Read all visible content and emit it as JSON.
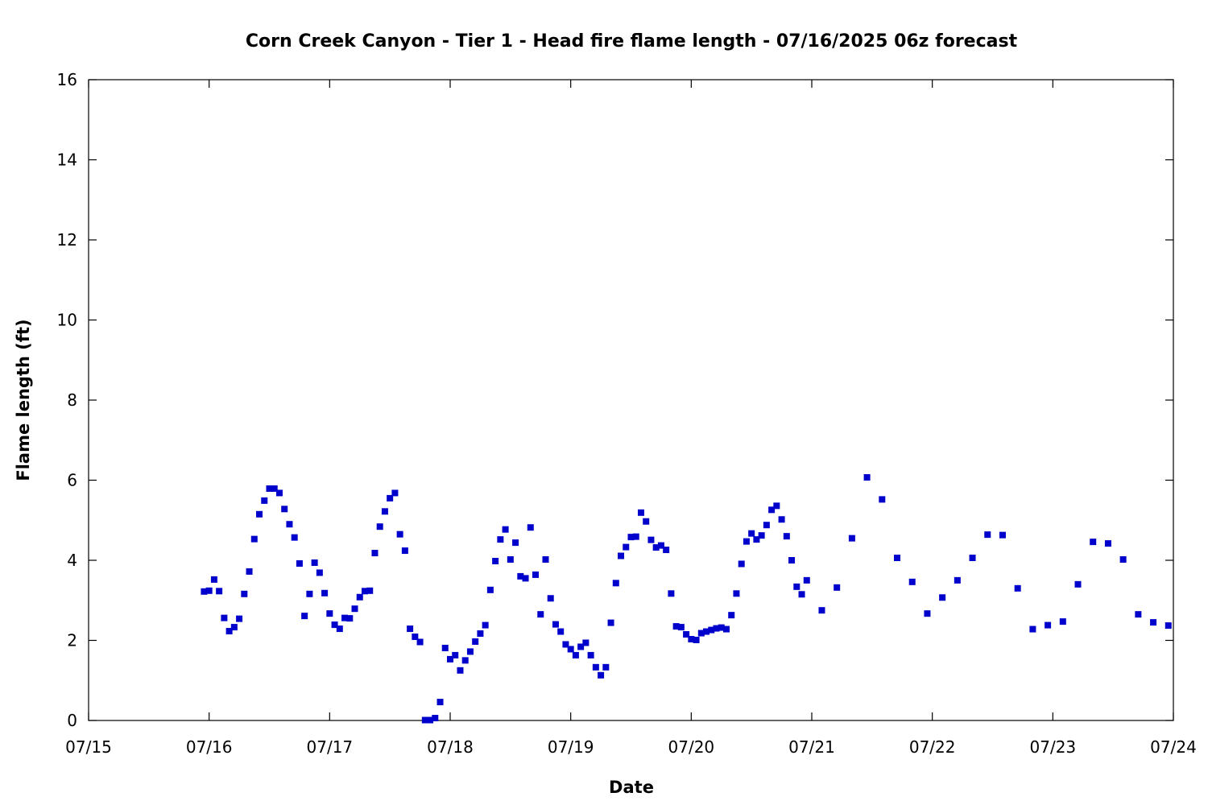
{
  "chart_data": {
    "type": "scatter",
    "title": "Corn Creek Canyon - Tier 1 - Head fire flame length - 07/16/2025 06z forecast",
    "xlabel": "Date",
    "ylabel": "Flame length (ft)",
    "x_tick_labels": [
      "07/15",
      "07/16",
      "07/17",
      "07/18",
      "07/19",
      "07/20",
      "07/21",
      "07/22",
      "07/23",
      "07/24"
    ],
    "y_ticks": [
      0,
      2,
      4,
      6,
      8,
      10,
      12,
      14,
      16
    ],
    "ylim": [
      0,
      16
    ],
    "xlim": [
      "2025-07-15 00:00",
      "2025-07-24 00:00"
    ],
    "grid": false,
    "marker_color": "#0000cc",
    "series": [
      {
        "points": [
          [
            "2025-07-15 23:00",
            3.22
          ],
          [
            "2025-07-16 00:00",
            3.24
          ],
          [
            "2025-07-16 01:00",
            3.52
          ],
          [
            "2025-07-16 02:00",
            3.23
          ],
          [
            "2025-07-16 03:00",
            2.56
          ],
          [
            "2025-07-16 04:00",
            2.23
          ],
          [
            "2025-07-16 05:00",
            2.33
          ],
          [
            "2025-07-16 06:00",
            2.54
          ],
          [
            "2025-07-16 07:00",
            3.16
          ],
          [
            "2025-07-16 08:00",
            3.72
          ],
          [
            "2025-07-16 09:00",
            4.53
          ],
          [
            "2025-07-16 10:00",
            5.15
          ],
          [
            "2025-07-16 11:00",
            5.49
          ],
          [
            "2025-07-16 12:00",
            5.79
          ],
          [
            "2025-07-16 13:00",
            5.79
          ],
          [
            "2025-07-16 14:00",
            5.68
          ],
          [
            "2025-07-16 15:00",
            5.28
          ],
          [
            "2025-07-16 16:00",
            4.9
          ],
          [
            "2025-07-16 17:00",
            4.57
          ],
          [
            "2025-07-16 18:00",
            3.92
          ],
          [
            "2025-07-16 19:00",
            2.61
          ],
          [
            "2025-07-16 20:00",
            3.16
          ],
          [
            "2025-07-16 21:00",
            3.94
          ],
          [
            "2025-07-16 22:00",
            3.69
          ],
          [
            "2025-07-16 23:00",
            3.18
          ],
          [
            "2025-07-17 00:00",
            2.67
          ],
          [
            "2025-07-17 01:00",
            2.39
          ],
          [
            "2025-07-17 02:00",
            2.29
          ],
          [
            "2025-07-17 03:00",
            2.56
          ],
          [
            "2025-07-17 04:00",
            2.55
          ],
          [
            "2025-07-17 05:00",
            2.79
          ],
          [
            "2025-07-17 06:00",
            3.08
          ],
          [
            "2025-07-17 07:00",
            3.23
          ],
          [
            "2025-07-17 08:00",
            3.24
          ],
          [
            "2025-07-17 09:00",
            4.18
          ],
          [
            "2025-07-17 10:00",
            4.84
          ],
          [
            "2025-07-17 11:00",
            5.22
          ],
          [
            "2025-07-17 12:00",
            5.55
          ],
          [
            "2025-07-17 13:00",
            5.68
          ],
          [
            "2025-07-17 14:00",
            4.65
          ],
          [
            "2025-07-17 15:00",
            4.24
          ],
          [
            "2025-07-17 16:00",
            2.29
          ],
          [
            "2025-07-17 17:00",
            2.09
          ],
          [
            "2025-07-17 18:00",
            1.96
          ],
          [
            "2025-07-17 19:00",
            0.01
          ],
          [
            "2025-07-17 20:00",
            0.01
          ],
          [
            "2025-07-17 21:00",
            0.06
          ],
          [
            "2025-07-17 22:00",
            0.46
          ],
          [
            "2025-07-17 23:00",
            1.81
          ],
          [
            "2025-07-18 00:00",
            1.53
          ],
          [
            "2025-07-18 01:00",
            1.63
          ],
          [
            "2025-07-18 02:00",
            1.25
          ],
          [
            "2025-07-18 03:00",
            1.5
          ],
          [
            "2025-07-18 04:00",
            1.72
          ],
          [
            "2025-07-18 05:00",
            1.97
          ],
          [
            "2025-07-18 06:00",
            2.17
          ],
          [
            "2025-07-18 07:00",
            2.38
          ],
          [
            "2025-07-18 08:00",
            3.26
          ],
          [
            "2025-07-18 09:00",
            3.98
          ],
          [
            "2025-07-18 10:00",
            4.52
          ],
          [
            "2025-07-18 11:00",
            4.77
          ],
          [
            "2025-07-18 12:00",
            4.02
          ],
          [
            "2025-07-18 13:00",
            4.44
          ],
          [
            "2025-07-18 14:00",
            3.6
          ],
          [
            "2025-07-18 15:00",
            3.55
          ],
          [
            "2025-07-18 16:00",
            4.82
          ],
          [
            "2025-07-18 17:00",
            3.64
          ],
          [
            "2025-07-18 18:00",
            2.65
          ],
          [
            "2025-07-18 19:00",
            4.02
          ],
          [
            "2025-07-18 20:00",
            3.05
          ],
          [
            "2025-07-18 21:00",
            2.4
          ],
          [
            "2025-07-18 22:00",
            2.22
          ],
          [
            "2025-07-18 23:00",
            1.9
          ],
          [
            "2025-07-19 00:00",
            1.78
          ],
          [
            "2025-07-19 01:00",
            1.63
          ],
          [
            "2025-07-19 02:00",
            1.84
          ],
          [
            "2025-07-19 03:00",
            1.94
          ],
          [
            "2025-07-19 04:00",
            1.63
          ],
          [
            "2025-07-19 05:00",
            1.33
          ],
          [
            "2025-07-19 06:00",
            1.13
          ],
          [
            "2025-07-19 07:00",
            1.33
          ],
          [
            "2025-07-19 08:00",
            2.44
          ],
          [
            "2025-07-19 09:00",
            3.43
          ],
          [
            "2025-07-19 10:00",
            4.11
          ],
          [
            "2025-07-19 11:00",
            4.33
          ],
          [
            "2025-07-19 12:00",
            4.58
          ],
          [
            "2025-07-19 13:00",
            4.59
          ],
          [
            "2025-07-19 14:00",
            5.19
          ],
          [
            "2025-07-19 15:00",
            4.97
          ],
          [
            "2025-07-19 16:00",
            4.51
          ],
          [
            "2025-07-19 17:00",
            4.32
          ],
          [
            "2025-07-19 18:00",
            4.37
          ],
          [
            "2025-07-19 19:00",
            4.26
          ],
          [
            "2025-07-19 20:00",
            3.17
          ],
          [
            "2025-07-19 21:00",
            2.35
          ],
          [
            "2025-07-19 22:00",
            2.33
          ],
          [
            "2025-07-19 23:00",
            2.15
          ],
          [
            "2025-07-20 00:00",
            2.03
          ],
          [
            "2025-07-20 01:00",
            2.01
          ],
          [
            "2025-07-20 02:00",
            2.18
          ],
          [
            "2025-07-20 03:00",
            2.22
          ],
          [
            "2025-07-20 04:00",
            2.26
          ],
          [
            "2025-07-20 05:00",
            2.3
          ],
          [
            "2025-07-20 06:00",
            2.32
          ],
          [
            "2025-07-20 07:00",
            2.28
          ],
          [
            "2025-07-20 08:00",
            2.63
          ],
          [
            "2025-07-20 09:00",
            3.17
          ],
          [
            "2025-07-20 10:00",
            3.91
          ],
          [
            "2025-07-20 11:00",
            4.47
          ],
          [
            "2025-07-20 12:00",
            4.67
          ],
          [
            "2025-07-20 13:00",
            4.52
          ],
          [
            "2025-07-20 14:00",
            4.62
          ],
          [
            "2025-07-20 15:00",
            4.88
          ],
          [
            "2025-07-20 16:00",
            5.26
          ],
          [
            "2025-07-20 17:00",
            5.36
          ],
          [
            "2025-07-20 18:00",
            5.02
          ],
          [
            "2025-07-20 19:00",
            4.6
          ],
          [
            "2025-07-20 20:00",
            4.0
          ],
          [
            "2025-07-20 21:00",
            3.34
          ],
          [
            "2025-07-20 22:00",
            3.15
          ],
          [
            "2025-07-20 23:00",
            3.5
          ],
          [
            "2025-07-21 02:00",
            2.75
          ],
          [
            "2025-07-21 05:00",
            3.32
          ],
          [
            "2025-07-21 08:00",
            4.55
          ],
          [
            "2025-07-21 11:00",
            6.07
          ],
          [
            "2025-07-21 14:00",
            5.52
          ],
          [
            "2025-07-21 17:00",
            4.06
          ],
          [
            "2025-07-21 20:00",
            3.46
          ],
          [
            "2025-07-21 23:00",
            2.67
          ],
          [
            "2025-07-22 02:00",
            3.07
          ],
          [
            "2025-07-22 05:00",
            3.5
          ],
          [
            "2025-07-22 08:00",
            4.06
          ],
          [
            "2025-07-22 11:00",
            4.64
          ],
          [
            "2025-07-22 14:00",
            4.63
          ],
          [
            "2025-07-22 17:00",
            3.3
          ],
          [
            "2025-07-22 20:00",
            2.28
          ],
          [
            "2025-07-22 23:00",
            2.38
          ],
          [
            "2025-07-23 02:00",
            2.47
          ],
          [
            "2025-07-23 05:00",
            3.4
          ],
          [
            "2025-07-23 08:00",
            4.46
          ],
          [
            "2025-07-23 11:00",
            4.42
          ],
          [
            "2025-07-23 14:00",
            4.02
          ],
          [
            "2025-07-23 17:00",
            2.65
          ],
          [
            "2025-07-23 20:00",
            2.45
          ],
          [
            "2025-07-23 23:00",
            2.37
          ]
        ]
      }
    ]
  }
}
